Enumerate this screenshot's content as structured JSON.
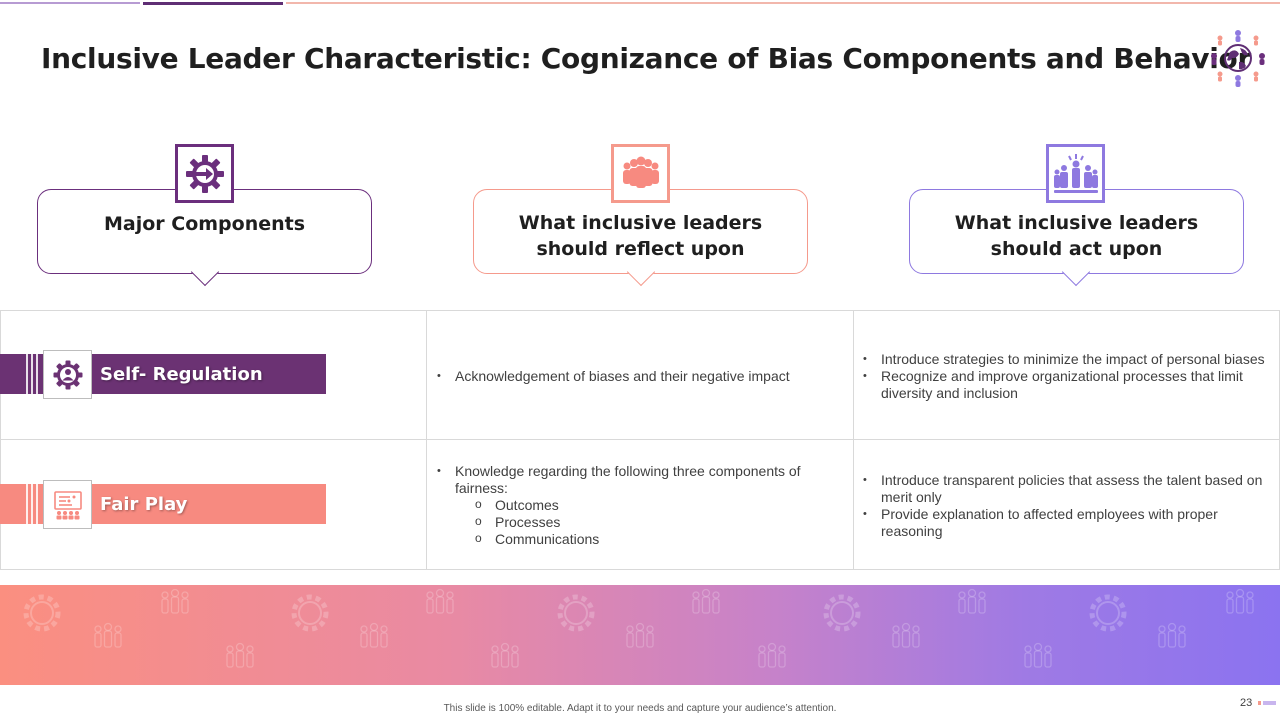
{
  "slide": {
    "title": "Inclusive Leader Characteristic: Cognizance of Bias Components and Behavior",
    "page_number": "23",
    "footer": "This slide is 100% editable. Adapt it to your needs and capture your audience’s attention."
  },
  "colors": {
    "purple": "#6b2f7d",
    "salmon": "#f78a80",
    "lavender": "#8e79e0"
  },
  "headers": [
    {
      "label": "Major Components",
      "icon": "gear-arrow-icon"
    },
    {
      "label_line1": "What inclusive leaders",
      "label_line2": "should reflect upon",
      "icon": "team-group-icon"
    },
    {
      "label_line1": "What inclusive leaders",
      "label_line2": "should act upon",
      "icon": "leadership-group-icon"
    }
  ],
  "rows": [
    {
      "label": "Self- Regulation",
      "icon": "person-gear-icon",
      "reflect": [
        "Acknowledgement of biases and their negative impact"
      ],
      "act": [
        "Introduce strategies to minimize  the impact of personal biases",
        "Recognize and improve organizational processes that limit diversity and inclusion"
      ]
    },
    {
      "label": "Fair Play",
      "icon": "presentation-board-icon",
      "reflect": {
        "intro": "Knowledge regarding the following three components of fairness:",
        "items": [
          "Outcomes",
          "Processes",
          "Communications"
        ]
      },
      "act": [
        "Introduce transparent policies that assess the talent based on merit only",
        "Provide explanation to affected employees with proper reasoning"
      ]
    }
  ]
}
